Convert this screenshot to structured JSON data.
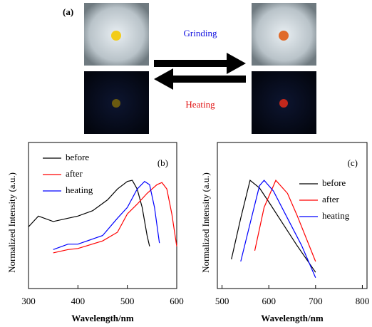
{
  "figure": {
    "panel_label": "(a)",
    "forward_label": "Grinding",
    "reverse_label": "Heating"
  },
  "chart_data": [
    {
      "type": "line",
      "title": "(b)",
      "x_label": "Wavelength/nm",
      "y_label": "Normalized Intensity (a.u.)",
      "xlim": [
        300,
        600
      ],
      "ylim": [
        0,
        1.35
      ],
      "xticks": [
        300,
        400,
        500,
        600
      ],
      "series": [
        {
          "name": "before",
          "color": "#000000",
          "x": [
            300,
            320,
            350,
            380,
            400,
            430,
            460,
            480,
            500,
            510,
            520,
            530,
            540,
            545
          ],
          "values": [
            0.57,
            0.67,
            0.62,
            0.65,
            0.67,
            0.72,
            0.82,
            0.92,
            0.99,
            1.0,
            0.92,
            0.75,
            0.49,
            0.39
          ]
        },
        {
          "name": "after",
          "color": "#ff0000",
          "x": [
            350,
            380,
            400,
            450,
            480,
            500,
            520,
            540,
            560,
            570,
            580,
            590,
            600
          ],
          "values": [
            0.33,
            0.36,
            0.37,
            0.44,
            0.52,
            0.69,
            0.78,
            0.88,
            0.96,
            0.98,
            0.92,
            0.69,
            0.39
          ]
        },
        {
          "name": "heating",
          "color": "#0000ff",
          "x": [
            350,
            380,
            400,
            450,
            480,
            500,
            520,
            535,
            545,
            555,
            565
          ],
          "values": [
            0.36,
            0.41,
            0.41,
            0.49,
            0.65,
            0.75,
            0.92,
            0.99,
            0.96,
            0.75,
            0.42
          ]
        }
      ]
    },
    {
      "type": "line",
      "title": "(c)",
      "x_label": "Wavelength/nm",
      "y_label": "Normalized Intensity (a.u.)",
      "xlim": [
        490,
        810
      ],
      "ylim": [
        0,
        1.35
      ],
      "xticks": [
        500,
        600,
        700,
        800
      ],
      "series": [
        {
          "name": "before",
          "color": "#000000",
          "x": [
            520,
            540,
            560,
            580,
            600,
            630,
            660,
            700
          ],
          "values": [
            0.27,
            0.65,
            1.0,
            0.93,
            0.8,
            0.6,
            0.4,
            0.15
          ]
        },
        {
          "name": "after",
          "color": "#ff0000",
          "x": [
            570,
            590,
            615,
            640,
            660,
            700
          ],
          "values": [
            0.35,
            0.75,
            1.0,
            0.88,
            0.68,
            0.25
          ]
        },
        {
          "name": "heating",
          "color": "#0000ff",
          "x": [
            540,
            560,
            580,
            590,
            610,
            640,
            670,
            700
          ],
          "values": [
            0.25,
            0.6,
            0.95,
            1.0,
            0.9,
            0.65,
            0.4,
            0.1
          ]
        }
      ]
    }
  ]
}
